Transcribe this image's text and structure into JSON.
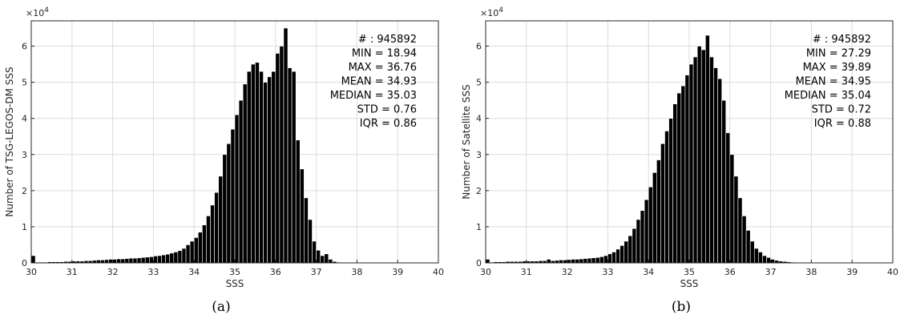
{
  "chart_data": [
    {
      "type": "bar",
      "caption": "(a)",
      "xlabel": "SSS",
      "ylabel": "Number of TSG-LEGOS-DM SSS",
      "y_exponent_label": "×10",
      "y_exponent": "4",
      "xlim": [
        30,
        40
      ],
      "ylim": [
        0,
        6.7
      ],
      "xticks": [
        30,
        31,
        32,
        33,
        34,
        35,
        36,
        37,
        38,
        39,
        40
      ],
      "yticks": [
        0,
        1,
        2,
        3,
        4,
        5,
        6
      ],
      "grid": true,
      "bin_start": 30,
      "bin_width": 0.1,
      "values": [
        0.2,
        0.02,
        0.02,
        0.02,
        0.03,
        0.03,
        0.03,
        0.03,
        0.04,
        0.04,
        0.05,
        0.05,
        0.05,
        0.06,
        0.06,
        0.07,
        0.08,
        0.08,
        0.09,
        0.1,
        0.1,
        0.11,
        0.11,
        0.12,
        0.13,
        0.13,
        0.14,
        0.15,
        0.16,
        0.17,
        0.19,
        0.2,
        0.22,
        0.24,
        0.27,
        0.3,
        0.34,
        0.4,
        0.5,
        0.6,
        0.7,
        0.85,
        1.05,
        1.3,
        1.6,
        1.95,
        2.4,
        3.0,
        3.3,
        3.7,
        4.1,
        4.5,
        4.95,
        5.3,
        5.5,
        5.55,
        5.3,
        5.0,
        5.15,
        5.3,
        5.8,
        6.0,
        6.5,
        5.4,
        5.3,
        3.4,
        2.6,
        1.8,
        1.2,
        0.6,
        0.35,
        0.2,
        0.25,
        0.1,
        0.04,
        0.02
      ]
    },
    {
      "type": "bar",
      "caption": "(b)",
      "xlabel": "SSS",
      "ylabel": "Number of Satellite SSS",
      "y_exponent_label": "×10",
      "y_exponent": "4",
      "xlim": [
        30,
        40
      ],
      "ylim": [
        0,
        6.7
      ],
      "xticks": [
        30,
        31,
        32,
        33,
        34,
        35,
        36,
        37,
        38,
        39,
        40
      ],
      "yticks": [
        0,
        1,
        2,
        3,
        4,
        5,
        6
      ],
      "grid": true,
      "bin_start": 30,
      "bin_width": 0.1,
      "values": [
        0.1,
        0.02,
        0.03,
        0.03,
        0.03,
        0.04,
        0.04,
        0.04,
        0.04,
        0.05,
        0.05,
        0.05,
        0.05,
        0.06,
        0.06,
        0.1,
        0.06,
        0.07,
        0.08,
        0.08,
        0.09,
        0.1,
        0.1,
        0.11,
        0.12,
        0.13,
        0.14,
        0.15,
        0.17,
        0.2,
        0.25,
        0.3,
        0.38,
        0.48,
        0.6,
        0.75,
        0.95,
        1.2,
        1.45,
        1.75,
        2.1,
        2.5,
        2.85,
        3.3,
        3.65,
        4.0,
        4.4,
        4.7,
        4.9,
        5.2,
        5.5,
        5.7,
        6.0,
        5.9,
        6.3,
        5.7,
        5.4,
        5.1,
        4.5,
        3.6,
        3.0,
        2.4,
        1.8,
        1.3,
        0.9,
        0.6,
        0.4,
        0.3,
        0.2,
        0.15,
        0.1,
        0.07,
        0.05,
        0.04,
        0.03,
        0.02
      ]
    }
  ],
  "stats": [
    [
      {
        "key": "# : ",
        "val": "945892"
      },
      {
        "key": "MIN = ",
        "val": "18.94"
      },
      {
        "key": "MAX =  ",
        "val": "36.76"
      },
      {
        "key": "MEAN = ",
        "val": "34.93"
      },
      {
        "key": "MEDIAN = ",
        "val": "35.03"
      },
      {
        "key": "STD = ",
        "val": "0.76"
      },
      {
        "key": "IQR = ",
        "val": "0.86"
      }
    ],
    [
      {
        "key": "# : ",
        "val": "945892"
      },
      {
        "key": "MIN = ",
        "val": "27.29"
      },
      {
        "key": "MAX =  ",
        "val": "39.89"
      },
      {
        "key": "MEAN = ",
        "val": "34.95"
      },
      {
        "key": "MEDIAN = ",
        "val": "35.04"
      },
      {
        "key": "STD = ",
        "val": "0.72"
      },
      {
        "key": "IQR = ",
        "val": "0.88"
      }
    ]
  ],
  "colors": {
    "bar_fill": "#000000",
    "bar_edge": "#ffffff",
    "grid": "#dcdcdc",
    "axis": "#262626"
  }
}
